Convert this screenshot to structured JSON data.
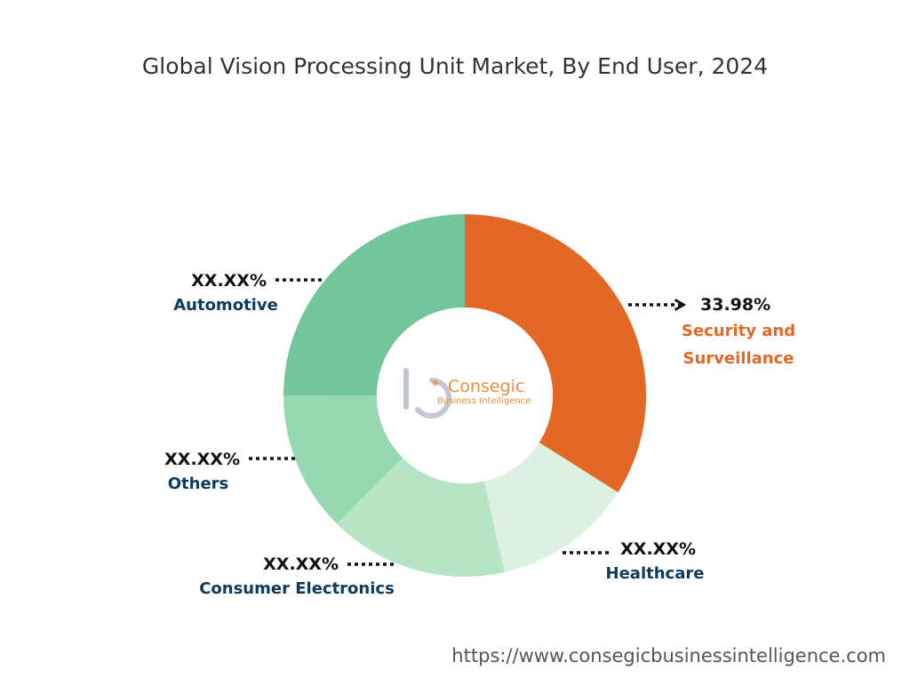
{
  "chart_data": {
    "type": "pie",
    "title": "Global Vision Processing Unit Market, By End User, 2024",
    "variant": "donut",
    "slices": [
      {
        "label": "Security and Surveillance",
        "label_lines": [
          "Security and",
          "Surveillance"
        ],
        "value": 33.98,
        "value_label": "33.98%",
        "color": "#e36725",
        "label_color": "#e36725"
      },
      {
        "label": "Healthcare",
        "label_lines": [
          "Healthcare"
        ],
        "value": 12.5,
        "value_label": "XX.XX%",
        "color": "#dbf2e0",
        "label_color": "#0e3a5e"
      },
      {
        "label": "Consumer Electronics",
        "label_lines": [
          "Consumer Electronics"
        ],
        "value": 16.0,
        "value_label": "XX.XX%",
        "color": "#b6e5c6",
        "label_color": "#0e3a5e"
      },
      {
        "label": "Others",
        "label_lines": [
          "Others"
        ],
        "value": 12.5,
        "value_label": "XX.XX%",
        "color": "#96d8b0",
        "label_color": "#0e3a5e"
      },
      {
        "label": "Automotive",
        "label_lines": [
          "Automotive"
        ],
        "value": 25.02,
        "value_label": "XX.XX%",
        "color": "#73c69b",
        "label_color": "#0e3a5e"
      }
    ]
  },
  "logo": {
    "name": "Consegic",
    "tagline": "Business Intelligence"
  },
  "footer": {
    "url": "https://www.consegicbusinessintelligence.com"
  },
  "colors": {
    "accent": "#e36725",
    "label": "#0e3a5e",
    "logo": "#f28c38"
  }
}
